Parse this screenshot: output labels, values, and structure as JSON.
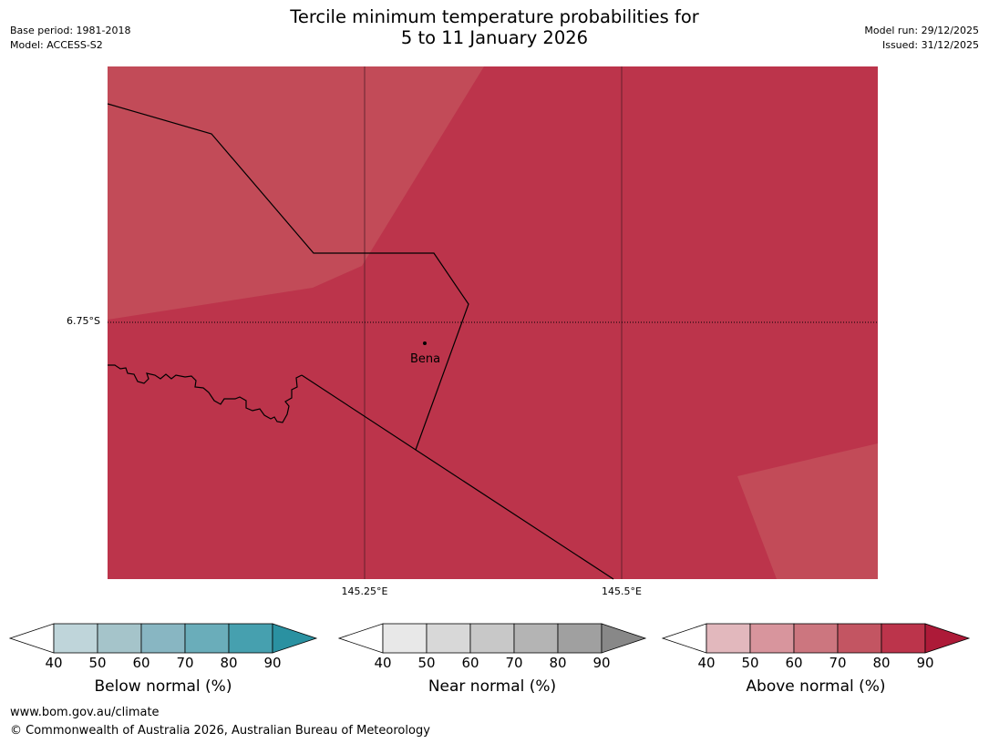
{
  "header": {
    "title_line1": "Tercile minimum temperature probabilities for",
    "title_line2": "5 to 11 January 2026",
    "base_period": "Base period: 1981-2018",
    "model": "Model: ACCESS-S2",
    "model_run": "Model run: 29/12/2025",
    "issued": "Issued: 31/12/2025"
  },
  "map": {
    "lon_ticks": [
      "145.25°E",
      "145.5°E"
    ],
    "lat_ticks": [
      "6.75°S"
    ],
    "places": [
      {
        "name": "Bena"
      }
    ],
    "colors": {
      "above_70_80": "#c24b58",
      "above_80_90": "#bc344b",
      "boundary": "#000000"
    }
  },
  "colorbars": [
    {
      "label": "Below normal (%)",
      "ticks": [
        "40",
        "50",
        "60",
        "70",
        "80",
        "90"
      ],
      "colors": [
        "#bfd5da",
        "#a5c4ca",
        "#88b6c2",
        "#6aadba",
        "#46a0af"
      ],
      "extend_low": "#ffffff",
      "extend_high": "#2a91a1"
    },
    {
      "label": "Near normal (%)",
      "ticks": [
        "40",
        "50",
        "60",
        "70",
        "80",
        "90"
      ],
      "colors": [
        "#e8e8e8",
        "#d8d8d8",
        "#c8c8c8",
        "#b4b4b4",
        "#a0a0a0"
      ],
      "extend_low": "#ffffff",
      "extend_high": "#888888"
    },
    {
      "label": "Above normal (%)",
      "ticks": [
        "40",
        "50",
        "60",
        "70",
        "80",
        "90"
      ],
      "colors": [
        "#e2b8bd",
        "#d8959d",
        "#cc767f",
        "#c35562",
        "#bc344b"
      ],
      "extend_low": "#ffffff",
      "extend_high": "#ad1a38"
    }
  ],
  "footer": {
    "url": "www.bom.gov.au/climate",
    "copyright": "© Commonwealth of Australia 2026, Australian Bureau of Meteorology"
  }
}
